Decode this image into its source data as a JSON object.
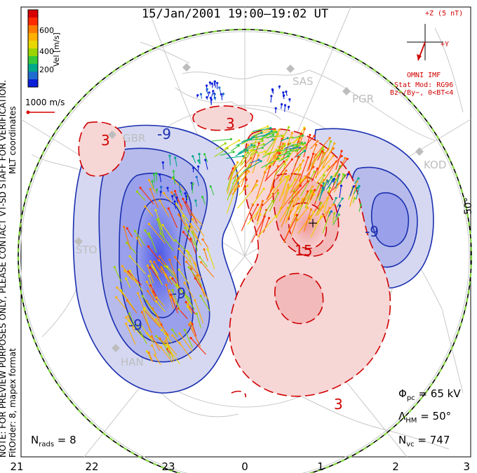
{
  "header": {
    "title": "15/Jan/2001  19:00–19:02 UT"
  },
  "color_bar": {
    "label": "Vel [m/s]",
    "tick_labels": [
      "600",
      "400",
      "200"
    ],
    "colors": [
      "#d70000",
      "#ff2a00",
      "#ff7a00",
      "#ffb000",
      "#e8d800",
      "#9bd400",
      "#35c83a",
      "#00a88a",
      "#1f6bd0",
      "#0b1fd8"
    ]
  },
  "scale_vector": {
    "label": "1000 m/s"
  },
  "side_labels": {
    "coordinates": "MLT coordinates",
    "note": "NOTE: FOR PREVIEW PURPOSES ONLY, PLEASE CONTACT VT-SD STAFF FOR VERIFICATION.",
    "fit": "FitOrder: 8, mapex format"
  },
  "imf": {
    "z_label": "+Z (5 nT)",
    "y_label": "+Y",
    "source": "OMNI IMF",
    "model": "Stat Mod: RG96",
    "condition": "Bz−/By−, 0<BT<4"
  },
  "stations": [
    "SAS",
    "PGR",
    "KOD",
    "GBR",
    "STO",
    "HAN"
  ],
  "contour_labels": {
    "negative": [
      "-9",
      "-9",
      "-9",
      "-9"
    ],
    "positive": [
      "3",
      "3",
      "3",
      "15"
    ]
  },
  "latitude_label": "50°",
  "stats": {
    "phi_label": "Φ",
    "phi_sub": "pc",
    "phi_value": " = 65 kV",
    "lambda_label": "Λ",
    "lambda_sub": "HM",
    "lambda_value": " = 50°",
    "nvc_label": "N",
    "nvc_sub": "vc",
    "nvc_value": " = 747",
    "nrads_label": "N",
    "nrads_sub": "rads",
    "nrads_value": " = 8"
  },
  "mlt_ticks": [
    "21",
    "22",
    "23",
    "0",
    "1",
    "2",
    "3"
  ],
  "colors": {
    "positive_contour": "#d00000",
    "negative_contour": "#1a2fb0",
    "positive_fill": "#f7d6d6",
    "negative_fill": "#d6d8f2",
    "boundary_dash": "#7ed43a",
    "map_grey": "#c8c8c8"
  }
}
